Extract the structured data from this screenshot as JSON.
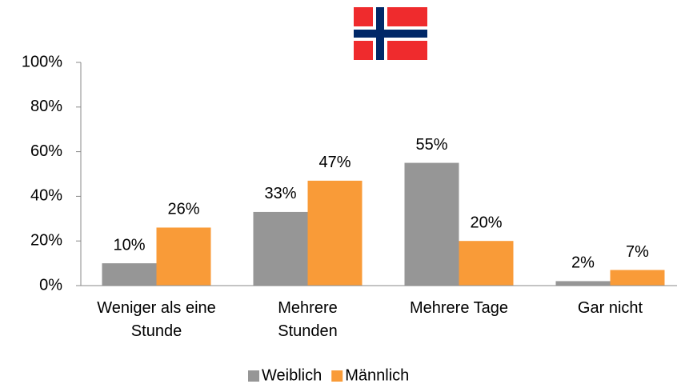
{
  "chart_data": {
    "type": "bar",
    "categories": [
      "Weniger als eine Stunde",
      "Mehrere Stunden",
      "Mehrere Tage",
      "Gar nicht"
    ],
    "series": [
      {
        "name": "Weiblich",
        "color": "#969696",
        "values": [
          10,
          33,
          55,
          2
        ],
        "value_labels": [
          "10%",
          "33%",
          "55%",
          "2%"
        ]
      },
      {
        "name": "Männlich",
        "color": "#f99b38",
        "values": [
          26,
          47,
          20,
          7
        ],
        "value_labels": [
          "26%",
          "47%",
          "20%",
          "7%"
        ]
      }
    ],
    "ylim": [
      0,
      100
    ],
    "yticks": [
      {
        "value": 0,
        "label": "0%"
      },
      {
        "value": 20,
        "label": "20%"
      },
      {
        "value": 40,
        "label": "40%"
      },
      {
        "value": 60,
        "label": "60%"
      },
      {
        "value": 80,
        "label": "80%"
      },
      {
        "value": 100,
        "label": "100%"
      }
    ],
    "grid": false,
    "legend": "bottom"
  }
}
